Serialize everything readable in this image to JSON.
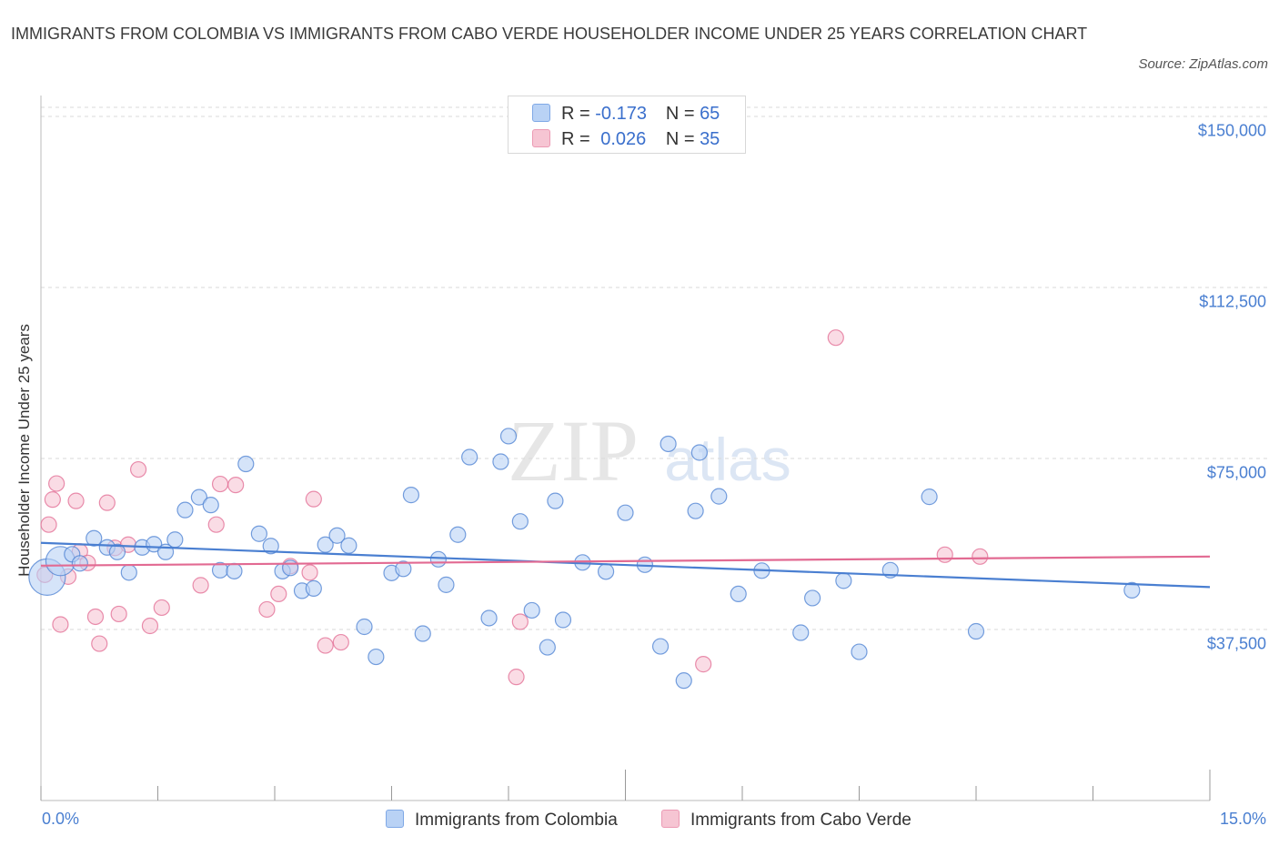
{
  "title": "IMMIGRANTS FROM COLOMBIA VS IMMIGRANTS FROM CABO VERDE HOUSEHOLDER INCOME UNDER 25 YEARS CORRELATION CHART",
  "source": "Source: ZipAtlas.com",
  "watermark": {
    "zip": "ZIP",
    "atlas": "atlas"
  },
  "colors": {
    "blue": "#4a7fd1",
    "blue_fill": "#b9d2f5",
    "pink": "#e26a92",
    "pink_fill": "#f6c5d3"
  },
  "legend": {
    "r_label": "R =",
    "n_label": "N =",
    "colombia": {
      "r": "-0.173",
      "n": "65"
    },
    "caboverde": {
      "r": "0.026",
      "n": "35"
    }
  },
  "bottom_legend": {
    "colombia": "Immigrants from Colombia",
    "caboverde": "Immigrants from Cabo Verde"
  },
  "chart_data": {
    "type": "scatter",
    "title": "IMMIGRANTS FROM COLOMBIA VS IMMIGRANTS FROM CABO VERDE HOUSEHOLDER INCOME UNDER 25 YEARS CORRELATION CHART",
    "xlabel": "",
    "ylabel": "Householder Income Under 25 years",
    "xlim": [
      0,
      15
    ],
    "ylim": [
      0,
      152000
    ],
    "x_tick_labels": [
      "0.0%",
      "15.0%"
    ],
    "y_ticks": [
      37500,
      75000,
      112500,
      150000
    ],
    "y_tick_labels": [
      "$37,500",
      "$75,000",
      "$112,500",
      "$150,000"
    ],
    "series": [
      {
        "name": "Immigrants from Colombia",
        "r": -0.173,
        "n": 65,
        "trend": {
          "x": [
            0,
            15
          ],
          "y": [
            56500,
            46800
          ]
        },
        "points": [
          {
            "x": 0.08,
            "y": 49000,
            "size": 3
          },
          {
            "x": 0.25,
            "y": 52500,
            "size": 2
          },
          {
            "x": 0.4,
            "y": 54000
          },
          {
            "x": 0.5,
            "y": 52000
          },
          {
            "x": 0.68,
            "y": 57500
          },
          {
            "x": 0.85,
            "y": 55500
          },
          {
            "x": 0.98,
            "y": 54500
          },
          {
            "x": 1.13,
            "y": 50000
          },
          {
            "x": 1.3,
            "y": 55500
          },
          {
            "x": 1.45,
            "y": 56200
          },
          {
            "x": 1.6,
            "y": 54500
          },
          {
            "x": 1.72,
            "y": 57200
          },
          {
            "x": 1.85,
            "y": 63700
          },
          {
            "x": 2.03,
            "y": 66500
          },
          {
            "x": 2.18,
            "y": 64800
          },
          {
            "x": 2.3,
            "y": 50500
          },
          {
            "x": 2.48,
            "y": 50300
          },
          {
            "x": 2.63,
            "y": 73800
          },
          {
            "x": 2.8,
            "y": 58500
          },
          {
            "x": 2.95,
            "y": 55800
          },
          {
            "x": 3.1,
            "y": 50300
          },
          {
            "x": 3.2,
            "y": 51000
          },
          {
            "x": 3.35,
            "y": 46000
          },
          {
            "x": 3.5,
            "y": 46500
          },
          {
            "x": 3.65,
            "y": 56100
          },
          {
            "x": 3.8,
            "y": 58100
          },
          {
            "x": 3.95,
            "y": 55900
          },
          {
            "x": 4.15,
            "y": 38100
          },
          {
            "x": 4.3,
            "y": 31500
          },
          {
            "x": 4.5,
            "y": 49900
          },
          {
            "x": 4.65,
            "y": 50800
          },
          {
            "x": 4.75,
            "y": 67000
          },
          {
            "x": 4.9,
            "y": 36600
          },
          {
            "x": 5.1,
            "y": 52900
          },
          {
            "x": 5.2,
            "y": 47300
          },
          {
            "x": 5.35,
            "y": 58300
          },
          {
            "x": 5.5,
            "y": 75300
          },
          {
            "x": 5.75,
            "y": 40000
          },
          {
            "x": 5.9,
            "y": 74300
          },
          {
            "x": 6.0,
            "y": 79900
          },
          {
            "x": 6.15,
            "y": 61200
          },
          {
            "x": 6.3,
            "y": 41700
          },
          {
            "x": 6.5,
            "y": 33600
          },
          {
            "x": 6.6,
            "y": 65700
          },
          {
            "x": 6.7,
            "y": 39600
          },
          {
            "x": 6.95,
            "y": 52200
          },
          {
            "x": 7.25,
            "y": 50200
          },
          {
            "x": 7.5,
            "y": 63100
          },
          {
            "x": 7.75,
            "y": 51700
          },
          {
            "x": 7.95,
            "y": 33800
          },
          {
            "x": 8.05,
            "y": 78200
          },
          {
            "x": 8.25,
            "y": 26300
          },
          {
            "x": 8.4,
            "y": 63500
          },
          {
            "x": 8.45,
            "y": 76300
          },
          {
            "x": 8.7,
            "y": 66700
          },
          {
            "x": 8.95,
            "y": 45300
          },
          {
            "x": 9.25,
            "y": 50400
          },
          {
            "x": 9.75,
            "y": 36800
          },
          {
            "x": 9.9,
            "y": 44400
          },
          {
            "x": 10.3,
            "y": 48200
          },
          {
            "x": 10.5,
            "y": 32600
          },
          {
            "x": 10.9,
            "y": 50500
          },
          {
            "x": 11.4,
            "y": 66600
          },
          {
            "x": 12.0,
            "y": 37100
          },
          {
            "x": 14.0,
            "y": 46100
          }
        ]
      },
      {
        "name": "Immigrants from Cabo Verde",
        "r": 0.026,
        "n": 35,
        "trend": {
          "x": [
            0,
            15
          ],
          "y": [
            51500,
            53500
          ]
        },
        "points": [
          {
            "x": 0.05,
            "y": 49500
          },
          {
            "x": 0.1,
            "y": 60500
          },
          {
            "x": 0.15,
            "y": 66000
          },
          {
            "x": 0.2,
            "y": 69500
          },
          {
            "x": 0.25,
            "y": 38600
          },
          {
            "x": 0.35,
            "y": 49100
          },
          {
            "x": 0.45,
            "y": 65700
          },
          {
            "x": 0.5,
            "y": 54600
          },
          {
            "x": 0.6,
            "y": 52100
          },
          {
            "x": 0.7,
            "y": 40300
          },
          {
            "x": 0.75,
            "y": 34400
          },
          {
            "x": 0.85,
            "y": 65300
          },
          {
            "x": 0.95,
            "y": 55400
          },
          {
            "x": 1.0,
            "y": 40900
          },
          {
            "x": 1.12,
            "y": 56100
          },
          {
            "x": 1.25,
            "y": 72600
          },
          {
            "x": 1.4,
            "y": 38300
          },
          {
            "x": 1.55,
            "y": 42300
          },
          {
            "x": 2.05,
            "y": 47200
          },
          {
            "x": 2.25,
            "y": 60500
          },
          {
            "x": 2.3,
            "y": 69400
          },
          {
            "x": 2.5,
            "y": 69200
          },
          {
            "x": 2.9,
            "y": 41900
          },
          {
            "x": 3.05,
            "y": 45300
          },
          {
            "x": 3.2,
            "y": 51400
          },
          {
            "x": 3.45,
            "y": 50000
          },
          {
            "x": 3.5,
            "y": 66100
          },
          {
            "x": 3.65,
            "y": 34000
          },
          {
            "x": 3.85,
            "y": 34700
          },
          {
            "x": 6.1,
            "y": 27100
          },
          {
            "x": 6.15,
            "y": 39200
          },
          {
            "x": 8.5,
            "y": 29900
          },
          {
            "x": 10.2,
            "y": 101500
          },
          {
            "x": 11.6,
            "y": 53900
          },
          {
            "x": 12.05,
            "y": 53500
          }
        ]
      }
    ]
  }
}
